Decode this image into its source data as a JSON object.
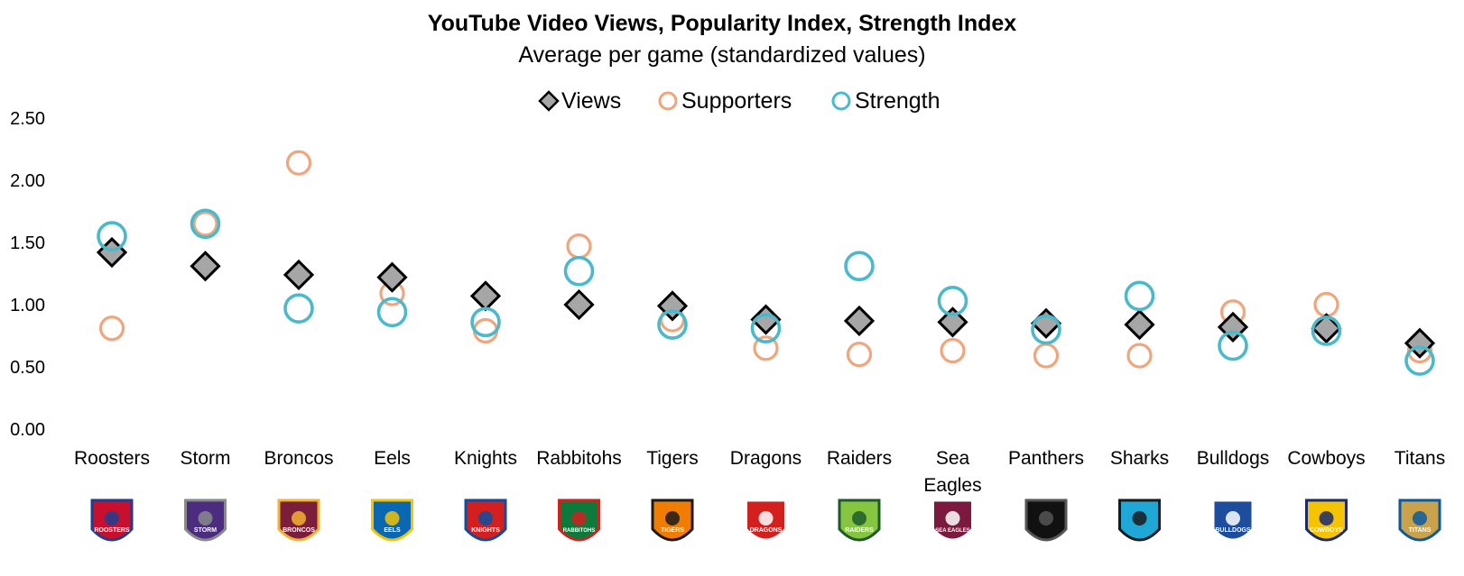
{
  "chart_data": {
    "type": "scatter",
    "title": "YouTube Video Views, Popularity Index, Strength Index",
    "subtitle": "Average per game (standardized values)",
    "legend_placement": "top-center",
    "grid": false,
    "ylim": [
      0,
      2.5
    ],
    "yticks": [
      "0.00",
      "0.50",
      "1.00",
      "1.50",
      "2.00",
      "2.50"
    ],
    "categories": [
      "Roosters",
      "Storm",
      "Broncos",
      "Eels",
      "Knights",
      "Rabbitohs",
      "Tigers",
      "Dragons",
      "Raiders",
      "Sea Eagles",
      "Panthers",
      "Sharks",
      "Bulldogs",
      "Cowboys",
      "Titans"
    ],
    "series": [
      {
        "name": "Views",
        "marker": "diamond",
        "values": [
          1.42,
          1.31,
          1.24,
          1.22,
          1.07,
          1.0,
          0.99,
          0.88,
          0.87,
          0.86,
          0.85,
          0.84,
          0.82,
          0.81,
          0.69
        ]
      },
      {
        "name": "Supporters",
        "marker": "circle",
        "values": [
          0.81,
          1.65,
          2.14,
          1.09,
          0.79,
          1.47,
          0.88,
          0.65,
          0.6,
          0.63,
          0.59,
          0.59,
          0.94,
          1.0,
          0.63
        ]
      },
      {
        "name": "Strength",
        "marker": "circle",
        "values": [
          1.55,
          1.65,
          0.97,
          0.94,
          0.86,
          1.27,
          0.84,
          0.81,
          1.31,
          1.03,
          0.8,
          1.07,
          0.67,
          0.79,
          0.55
        ]
      }
    ],
    "colors": {
      "views_fill": "#a6a6a6",
      "views_stroke": "#000000",
      "supporters": "#f0a57c",
      "strength": "#4bb9cc",
      "subtitle": "#e8211c"
    },
    "team_logos": [
      {
        "team": "Roosters",
        "text": "ROOSTERS",
        "colors": [
          "#c8102e",
          "#1d3f8f"
        ]
      },
      {
        "team": "Storm",
        "text": "STORM",
        "colors": [
          "#4b2c7f",
          "#8a8a8a"
        ]
      },
      {
        "team": "Broncos",
        "text": "BRONCOS",
        "colors": [
          "#7a1e3c",
          "#f2b32f"
        ]
      },
      {
        "team": "Eels",
        "text": "EELS",
        "colors": [
          "#0a67b2",
          "#f5c400"
        ]
      },
      {
        "team": "Knights",
        "text": "KNIGHTS",
        "colors": [
          "#d3201f",
          "#0a4fa0"
        ]
      },
      {
        "team": "Rabbitohs",
        "text": "RABBITOHS",
        "colors": [
          "#0c7a3b",
          "#d3201f"
        ]
      },
      {
        "team": "Tigers",
        "text": "TIGERS",
        "colors": [
          "#f07d00",
          "#1a1a1a"
        ]
      },
      {
        "team": "Dragons",
        "text": "DRAGONS",
        "colors": [
          "#d3201f",
          "#ffffff"
        ]
      },
      {
        "team": "Raiders",
        "text": "RAIDERS",
        "colors": [
          "#86c540",
          "#1f5a2c"
        ]
      },
      {
        "team": "Sea Eagles",
        "text": "SEA EAGLES",
        "colors": [
          "#7b1a3e",
          "#ffffff"
        ]
      },
      {
        "team": "Panthers",
        "text": "",
        "colors": [
          "#111111",
          "#555555"
        ]
      },
      {
        "team": "Sharks",
        "text": "",
        "colors": [
          "#1fa7d6",
          "#1a1a1a"
        ]
      },
      {
        "team": "Bulldogs",
        "text": "BULLDOGS",
        "colors": [
          "#1d4e9e",
          "#ffffff"
        ]
      },
      {
        "team": "Cowboys",
        "text": "COWBOYS",
        "colors": [
          "#f5c400",
          "#1a2a6c"
        ]
      },
      {
        "team": "Titans",
        "text": "TITANS",
        "colors": [
          "#c9a24b",
          "#0a5aa0"
        ]
      }
    ]
  }
}
